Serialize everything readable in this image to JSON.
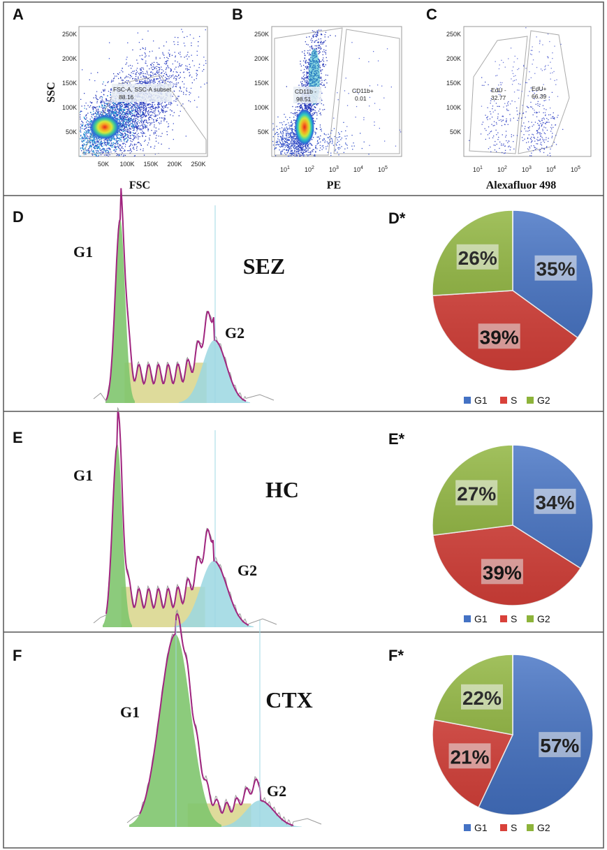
{
  "colors": {
    "g1": "#4472C4",
    "s": "#D9413A",
    "g2": "#8DB33A",
    "magenta": "#A0257F",
    "cyan": "#9BD7E2",
    "olive": "#D8D58A",
    "green_fill": "#7FC56E",
    "border": "#555555"
  },
  "panels": {
    "A": "A",
    "B": "B",
    "C": "C",
    "D": "D",
    "E": "E",
    "F": "F",
    "Ds": "D*",
    "Es": "E*",
    "Fs": "F*"
  },
  "scatter": {
    "A": {
      "xlabel": "FSC",
      "ylabel": "SSC",
      "xticks": [
        "50K",
        "100K",
        "150K",
        "200K",
        "250K"
      ],
      "yticks": [
        "50K",
        "100K",
        "150K",
        "200K",
        "250K"
      ],
      "gate_label": "FSC-A, SSC-A subset",
      "gate_value": "88.16"
    },
    "B": {
      "xlabel": "PE",
      "yticks": [
        "50K",
        "100K",
        "150K",
        "200K",
        "250K"
      ],
      "xticks": [
        "1",
        "2",
        "3",
        "4",
        "5"
      ],
      "gate1_label": "CD11b -",
      "gate1_value": "98.51",
      "gate2_label": "CD11b+",
      "gate2_value": "0.01"
    },
    "C": {
      "xlabel": "Alexafluor 498",
      "yticks": [
        "50K",
        "100K",
        "150K",
        "200K",
        "250K"
      ],
      "xticks": [
        "1",
        "2",
        "3",
        "4",
        "5"
      ],
      "gate1_label": "EdU -",
      "gate1_value": "32.77",
      "gate2_label": "EdU+",
      "gate2_value": "66.39"
    }
  },
  "histograms": [
    {
      "region": "SEZ",
      "g1_label": "G1",
      "g2_label": "G2"
    },
    {
      "region": "HC",
      "g1_label": "G1",
      "g2_label": "G2"
    },
    {
      "region": "CTX",
      "g1_label": "G1",
      "g2_label": "G2"
    }
  ],
  "legend": {
    "g1": "G1",
    "s": "S",
    "g2": "G2"
  },
  "chart_data": [
    {
      "type": "pie",
      "title": "D*",
      "region": "SEZ",
      "labels": [
        "G1",
        "S",
        "G2"
      ],
      "values": [
        35,
        39,
        26
      ],
      "display": [
        "35%",
        "39%",
        "26%"
      ]
    },
    {
      "type": "pie",
      "title": "E*",
      "region": "HC",
      "labels": [
        "G1",
        "S",
        "G2"
      ],
      "values": [
        34,
        39,
        27
      ],
      "display": [
        "34%",
        "39%",
        "27%"
      ]
    },
    {
      "type": "pie",
      "title": "F*",
      "region": "CTX",
      "labels": [
        "G1",
        "S",
        "G2"
      ],
      "values": [
        57,
        21,
        22
      ],
      "display": [
        "57%",
        "21%",
        "22%"
      ]
    }
  ]
}
